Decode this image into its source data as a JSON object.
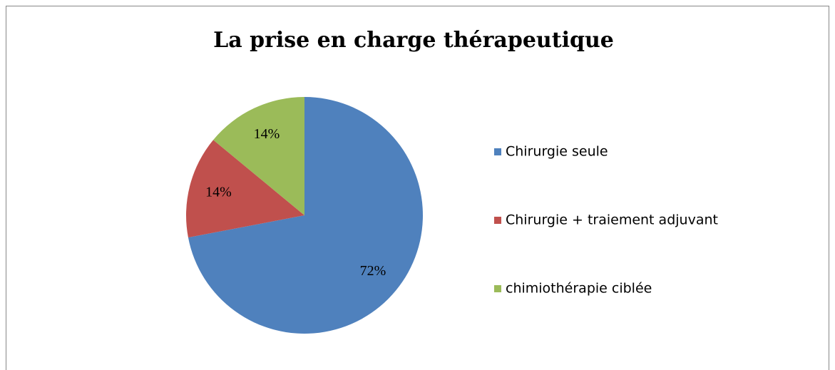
{
  "chart_data": {
    "type": "pie",
    "title": "La prise en charge thérapeutique",
    "categories": [
      "Chirurgie seule",
      "Chirurgie + traiement adjuvant",
      "chimiothérapie ciblée"
    ],
    "values": [
      72,
      14,
      14
    ],
    "value_labels": [
      "72%",
      "14%",
      "14%"
    ],
    "colors": [
      "#4f81bd",
      "#c0504d",
      "#9bbb59"
    ],
    "legend": "right"
  }
}
